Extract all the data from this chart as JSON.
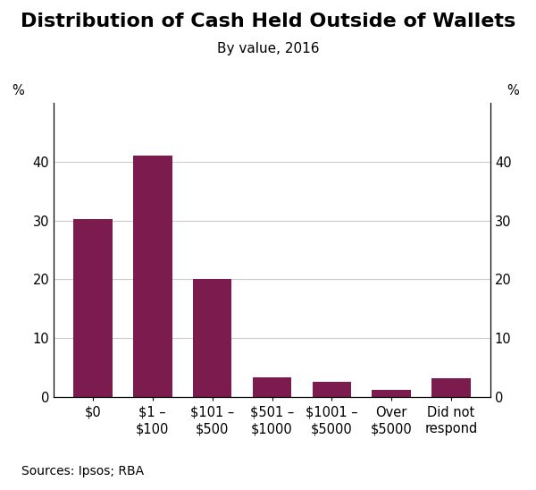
{
  "title": "Distribution of Cash Held Outside of Wallets",
  "subtitle": "By value, 2016",
  "categories": [
    "$0",
    "$1 –\n$100",
    "$101 –\n$500",
    "$501 –\n$1000",
    "$1001 –\n$5000",
    "Over\n$5000",
    "Did not\nrespond"
  ],
  "values": [
    30.3,
    41.0,
    20.0,
    3.3,
    2.5,
    1.2,
    3.2
  ],
  "bar_color": "#7B1B4E",
  "ylim": [
    0,
    50
  ],
  "yticks": [
    0,
    10,
    20,
    30,
    40
  ],
  "ylabel_left": "%",
  "ylabel_right": "%",
  "source_text": "Sources: Ipsos; RBA",
  "background_color": "#ffffff",
  "title_fontsize": 16,
  "subtitle_fontsize": 11,
  "tick_fontsize": 10.5,
  "source_fontsize": 10,
  "grid_color": "#cccccc",
  "grid_linewidth": 0.8,
  "bar_width": 0.65
}
